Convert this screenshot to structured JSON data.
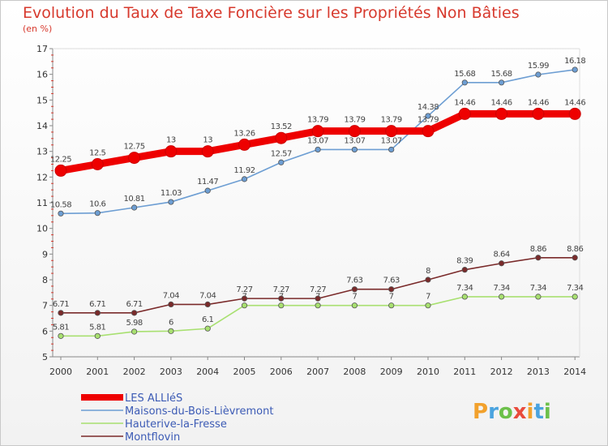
{
  "chart_data": {
    "type": "line",
    "title": "Evolution du Taux de Taxe Foncière sur les Propriétés Non Bâties",
    "subtitle": "(en %)",
    "x": [
      "2000",
      "2001",
      "2002",
      "2003",
      "2004",
      "2005",
      "2006",
      "2007",
      "2008",
      "2009",
      "2010",
      "2011",
      "2012",
      "2013",
      "2014"
    ],
    "ylim": [
      5,
      17
    ],
    "yticks": [
      5,
      6,
      7,
      8,
      9,
      10,
      11,
      12,
      13,
      14,
      15,
      16,
      17
    ],
    "grid": false,
    "legend_position": "bottom-left",
    "series": [
      {
        "name": "LES ALLIéS",
        "color": "#ee0000",
        "values": [
          12.25,
          12.5,
          12.75,
          13,
          13,
          13.26,
          13.52,
          13.79,
          13.79,
          13.79,
          13.79,
          14.46,
          14.46,
          14.46,
          14.46
        ],
        "labels": [
          "12.25",
          "12.5",
          "12.75",
          "13",
          "13",
          "13.26",
          "13.52",
          "13.79",
          "13.79",
          "13.79",
          "13.79",
          "14.46",
          "14.46",
          "14.46",
          "14.46"
        ]
      },
      {
        "name": "Maisons-du-Bois-Lièvremont",
        "color": "#6d9ed3",
        "values": [
          10.58,
          10.6,
          10.81,
          11.03,
          11.47,
          11.92,
          12.57,
          13.07,
          13.07,
          13.07,
          14.38,
          15.68,
          15.68,
          15.99,
          16.18
        ],
        "labels": [
          "10.58",
          "10.6",
          "10.81",
          "11.03",
          "11.47",
          "11.92",
          "12.57",
          "13.07",
          "13.07",
          "13.07",
          "14.38",
          "15.68",
          "15.68",
          "15.99",
          "16.18"
        ]
      },
      {
        "name": "Hauterive-la-Fresse",
        "color": "#a8e070",
        "values": [
          5.81,
          5.81,
          5.98,
          6,
          6.1,
          7,
          7,
          7,
          7,
          7,
          7,
          7.34,
          7.34,
          7.34,
          7.34
        ],
        "labels": [
          "5.81",
          "5.81",
          "5.98",
          "6",
          "6.1",
          "7",
          "7",
          "7",
          "7",
          "7",
          "7",
          "7.34",
          "7.34",
          "7.34",
          "7.34"
        ]
      },
      {
        "name": "Montflovin",
        "color": "#7a2a2a",
        "values": [
          6.71,
          6.71,
          6.71,
          7.04,
          7.04,
          7.27,
          7.27,
          7.27,
          7.63,
          7.63,
          8,
          8.39,
          8.64,
          8.86,
          8.86
        ],
        "labels": [
          "6.71",
          "6.71",
          "6.71",
          "7.04",
          "7.04",
          "7.27",
          "7.27",
          "7.27",
          "7.63",
          "7.63",
          "8",
          "8.39",
          "8.64",
          "8.86",
          "8.86"
        ]
      }
    ]
  },
  "logo": {
    "letters": [
      "P",
      "r",
      "o",
      "x",
      "i",
      "t",
      "i"
    ],
    "colors": [
      "#f2a12c",
      "#4aa3df",
      "#6cc04a",
      "#e94b3c",
      "#f2a12c",
      "#4aa3df",
      "#6cc04a"
    ]
  }
}
